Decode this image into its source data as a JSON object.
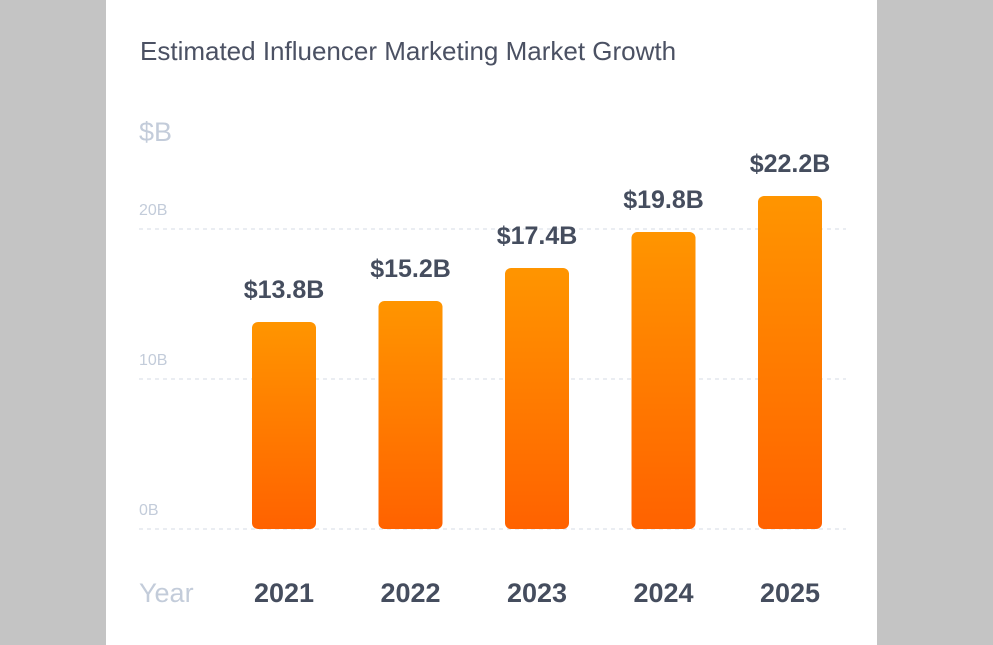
{
  "colors": {
    "bar_top": "#ff9500",
    "bar_bottom": "#ff6200",
    "background": "#c4c4c4",
    "card": "#ffffff"
  },
  "chart_data": {
    "type": "bar",
    "title": "Estimated Influencer Marketing Market Growth",
    "unit_label": "$B",
    "xlabel": "Year",
    "categories": [
      "2021",
      "2022",
      "2023",
      "2024",
      "2025"
    ],
    "values": [
      13.8,
      15.2,
      17.4,
      19.8,
      22.2
    ],
    "value_labels": [
      "$13.8B",
      "$15.2B",
      "$17.4B",
      "$19.8B",
      "$22.2B"
    ],
    "yticks": [
      {
        "value": 0,
        "label": "0B"
      },
      {
        "value": 10,
        "label": "10B"
      },
      {
        "value": 20,
        "label": "20B"
      }
    ],
    "grid": true,
    "legend": false
  }
}
